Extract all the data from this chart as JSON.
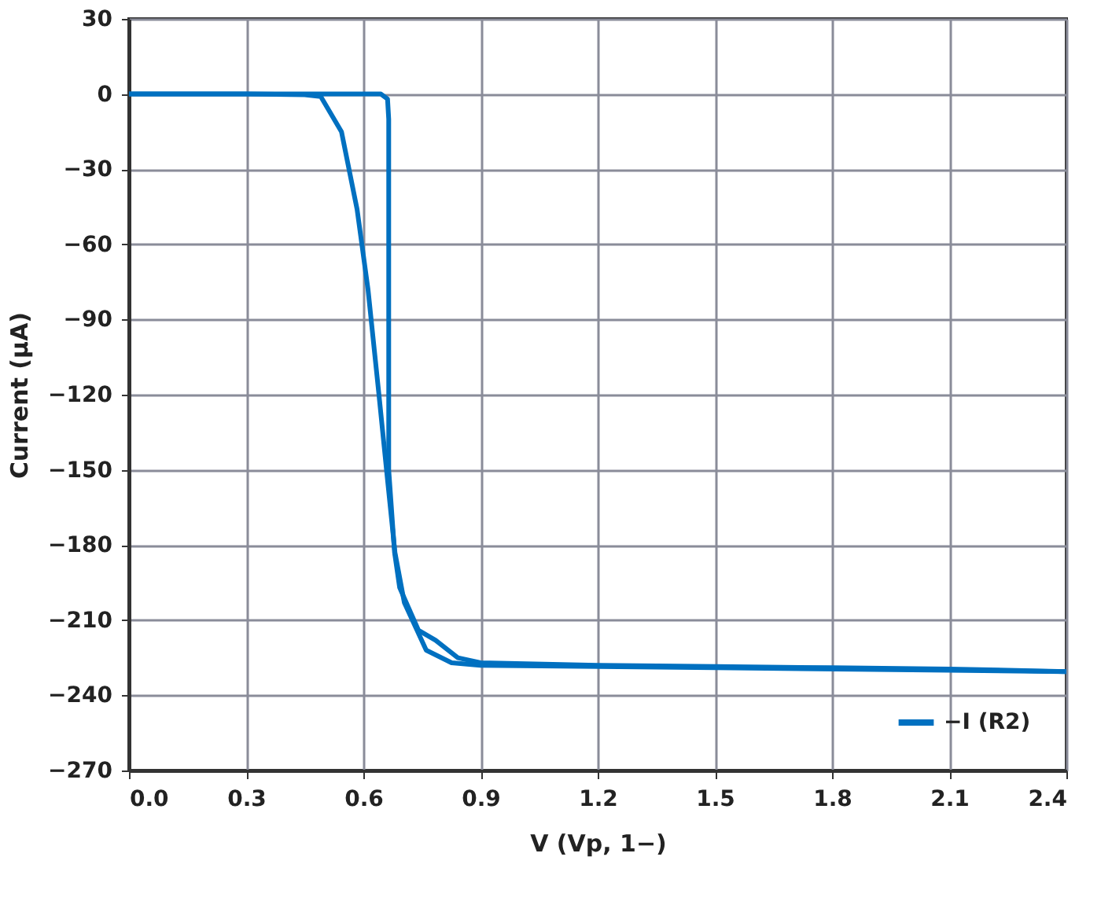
{
  "chart_data": {
    "type": "line",
    "xlabel": "V (Vp, 1−)",
    "ylabel": "Current (µA)",
    "xlim": [
      0,
      2.4
    ],
    "xticks": [
      {
        "value": 0,
        "label": "0.0"
      },
      0.3,
      0.6,
      0.9,
      1.2,
      1.5,
      1.8,
      2.1,
      2.4
    ],
    "ylim": [
      -270,
      30
    ],
    "yticks": [
      {
        "value": -270,
        "label": "−270"
      },
      {
        "value": -240,
        "label": "−240"
      },
      {
        "value": -210,
        "label": "−210"
      },
      {
        "value": -180,
        "label": "−180"
      },
      {
        "value": -150,
        "label": "−150"
      },
      {
        "value": -120,
        "label": "−120"
      },
      {
        "value": -90,
        "label": "−90"
      },
      {
        "value": -60,
        "label": "−60"
      },
      {
        "value": -30,
        "label": "−30"
      },
      0,
      30
    ],
    "grid": true,
    "legend": "bottom right",
    "line_style": "solid",
    "series": [
      {
        "name": "−I (R2)",
        "color": "#0070c0",
        "x": [
          0,
          0.3,
          0.6,
          0.645,
          0.662,
          0.665,
          0.665,
          0.68,
          0.693,
          0.741,
          0.785,
          0.842,
          0.9,
          1.2,
          1.5,
          1.8,
          2.1,
          2.4
        ],
        "values": [
          0,
          0,
          0,
          0,
          -2,
          -10,
          -150,
          -183,
          -197,
          -214,
          -218,
          -225,
          -227,
          -228,
          -228.5,
          -229,
          -229.5,
          -230.5
        ]
      },
      {
        "color": "#0070c0",
        "x": [
          0,
          0.3,
          0.45,
          0.491,
          0.544,
          0.584,
          0.612,
          0.64,
          0.66,
          0.681,
          0.705,
          0.761,
          0.826,
          0.9,
          1.5,
          2.1,
          2.4
        ],
        "values": [
          0,
          0,
          -0.3,
          -1,
          -15,
          -46,
          -78,
          -120,
          -151,
          -183,
          -203,
          -222,
          -227,
          -228,
          -229,
          -230,
          -230.5
        ]
      }
    ]
  }
}
